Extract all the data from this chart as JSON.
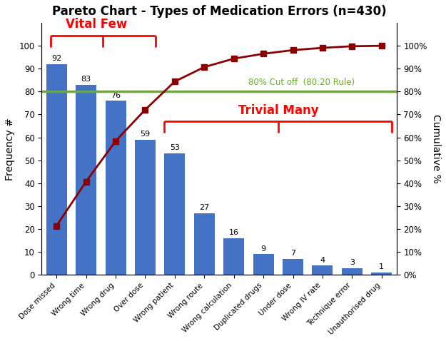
{
  "title": "Pareto Chart - Types of Medication Errors (n=430)",
  "categories": [
    "Dose missed",
    "Wrong time",
    "Wrong drug",
    "Over dose",
    "Wrong patient",
    "Wrong route",
    "Wrong calculation",
    "Duplicated drugs",
    "Under dose",
    "Wrong IV rate",
    "Technique error",
    "Unauthorised drug"
  ],
  "values": [
    92,
    83,
    76,
    59,
    53,
    27,
    16,
    9,
    7,
    4,
    3,
    1
  ],
  "cumulative_pct": [
    21.4,
    40.7,
    58.4,
    72.1,
    84.4,
    90.7,
    94.4,
    96.5,
    98.1,
    99.1,
    99.8,
    100.0
  ],
  "bar_color": "#4472C4",
  "line_color": "#8B0000",
  "cutoff_color": "#6AAD2A",
  "cutoff_value": 80,
  "cutoff_label": "80% Cut off  (80:20 Rule)",
  "ylabel_left": "Frequency #",
  "ylabel_right": "Cumulative %",
  "vital_few_label": "Vital Few",
  "trivial_many_label": "Trivial Many",
  "background_color": "#FFFFFF",
  "yticks_left": [
    0,
    10,
    20,
    30,
    40,
    50,
    60,
    70,
    80,
    90,
    100
  ],
  "yticks_right_labels": [
    "0%",
    "10%",
    "20%",
    "30%",
    "40%",
    "50%",
    "60%",
    "70%",
    "80%",
    "90%",
    "100%"
  ]
}
